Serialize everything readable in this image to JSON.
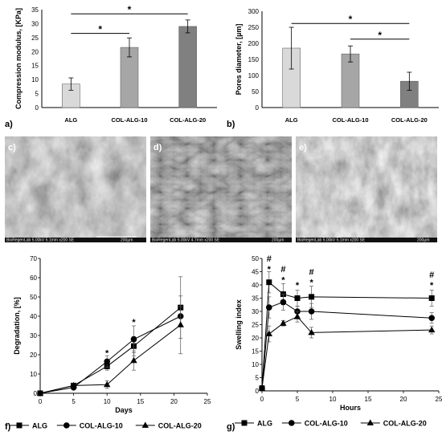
{
  "panels": {
    "a": "a)",
    "b": "b)",
    "c": "c)",
    "d": "d)",
    "e": "e)",
    "f": "f)",
    "g": "g)"
  },
  "sem_labels": {
    "c": "BioRegenLab 5.00kV 5.1mm x200 SE",
    "c_scale": "200µm",
    "d": "BioRegenLab 5.00kV 4.7mm x200 SE",
    "d_scale": "200µm",
    "e": "BioRegenLab 5.00kV 5.1mm x200 SE",
    "e_scale": "200µm"
  },
  "chart_data": [
    {
      "id": "a",
      "type": "bar",
      "ylabel": "Compression modulus, [KPa]",
      "categories": [
        "ALG",
        "COL-ALG-10",
        "COL-ALG-20"
      ],
      "values": [
        8.4,
        21.5,
        29.0
      ],
      "errors": [
        2.2,
        3.4,
        2.3
      ],
      "colors": [
        "#d9d9d9",
        "#a6a6a6",
        "#808080"
      ],
      "ylim": [
        0,
        35
      ],
      "yticks": [
        0,
        5,
        10,
        15,
        20,
        25,
        30,
        35
      ],
      "significance": [
        {
          "from": 0,
          "to": 1,
          "y": 26.5,
          "label": "*"
        },
        {
          "from": 0,
          "to": 2,
          "y": 33.5,
          "label": "*"
        }
      ]
    },
    {
      "id": "b",
      "type": "bar",
      "ylabel": "Pores diameter, [µm]",
      "categories": [
        "ALG",
        "COL-ALG-10",
        "COL-ALG-20"
      ],
      "values": [
        185,
        167,
        82
      ],
      "errors": [
        65,
        25,
        28
      ],
      "colors": [
        "#d9d9d9",
        "#a6a6a6",
        "#808080"
      ],
      "ylim": [
        0,
        300
      ],
      "yticks": [
        0,
        50,
        100,
        150,
        200,
        250,
        300
      ],
      "significance": [
        {
          "from": 0,
          "to": 2,
          "y": 262,
          "label": "*"
        },
        {
          "from": 1,
          "to": 2,
          "y": 213,
          "label": "*"
        }
      ]
    },
    {
      "id": "f",
      "type": "line",
      "xlabel": "Days",
      "ylabel": "Degradation, [%]",
      "xlim": [
        0,
        25
      ],
      "xticks": [
        0,
        5,
        10,
        15,
        20,
        25
      ],
      "ylim": [
        0,
        70
      ],
      "yticks": [
        0,
        10,
        20,
        30,
        40,
        50,
        60,
        70
      ],
      "series": [
        {
          "name": "ALG",
          "marker": "square",
          "x": [
            0,
            5,
            10,
            14,
            21
          ],
          "y": [
            0,
            4,
            14,
            24.5,
            44.5
          ],
          "err": [
            0,
            1,
            2,
            5,
            16
          ]
        },
        {
          "name": "COL-ALG-10",
          "marker": "circle",
          "x": [
            0,
            5,
            10,
            14,
            21
          ],
          "y": [
            0,
            3,
            16.5,
            28,
            40
          ],
          "err": [
            0,
            1,
            3,
            7,
            5
          ]
        },
        {
          "name": "COL-ALG-20",
          "marker": "triangle",
          "x": [
            0,
            5,
            10,
            14,
            21
          ],
          "y": [
            0,
            4,
            4.5,
            17,
            35.5
          ],
          "err": [
            0,
            1,
            2,
            5,
            15
          ]
        }
      ],
      "significance": [
        {
          "x": 10,
          "y": 21,
          "label": "*"
        },
        {
          "x": 14,
          "y": 37,
          "label": "*"
        }
      ]
    },
    {
      "id": "g",
      "type": "line",
      "xlabel": "Hours",
      "ylabel": "Swelling index",
      "xlim": [
        0,
        25
      ],
      "xticks": [
        0,
        5,
        10,
        15,
        20,
        25
      ],
      "ylim": [
        0,
        50
      ],
      "yticks": [
        0,
        5,
        10,
        15,
        20,
        25,
        30,
        35,
        40,
        45,
        50
      ],
      "series": [
        {
          "name": "ALG",
          "marker": "square",
          "x": [
            0,
            1,
            3,
            5,
            7,
            24
          ],
          "y": [
            1,
            41,
            36.5,
            35,
            35.5,
            35
          ],
          "err": [
            0,
            4,
            4,
            3,
            4,
            3
          ]
        },
        {
          "name": "COL-ALG-10",
          "marker": "circle",
          "x": [
            0,
            1,
            3,
            5,
            7,
            24
          ],
          "y": [
            1,
            31.5,
            33.5,
            30,
            30,
            27.5
          ],
          "err": [
            0,
            4,
            3,
            2,
            3,
            2
          ]
        },
        {
          "name": "COL-ALG-20",
          "marker": "triangle",
          "x": [
            0,
            1,
            3,
            5,
            7,
            24
          ],
          "y": [
            1,
            21.5,
            25.5,
            28,
            22,
            23
          ],
          "err": [
            0,
            3,
            1,
            2,
            2,
            1.5
          ]
        }
      ],
      "significance": [
        {
          "x": 1,
          "y": 46,
          "label": "*"
        },
        {
          "x": 1,
          "y": 50,
          "label": "#"
        },
        {
          "x": 3,
          "y": 42,
          "label": "*"
        },
        {
          "x": 3,
          "y": 46,
          "label": "#"
        },
        {
          "x": 5,
          "y": 40,
          "label": "*"
        },
        {
          "x": 7,
          "y": 41,
          "label": "*"
        },
        {
          "x": 7,
          "y": 45,
          "label": "#"
        },
        {
          "x": 24,
          "y": 40,
          "label": "*"
        },
        {
          "x": 24,
          "y": 44,
          "label": "#"
        }
      ]
    }
  ]
}
